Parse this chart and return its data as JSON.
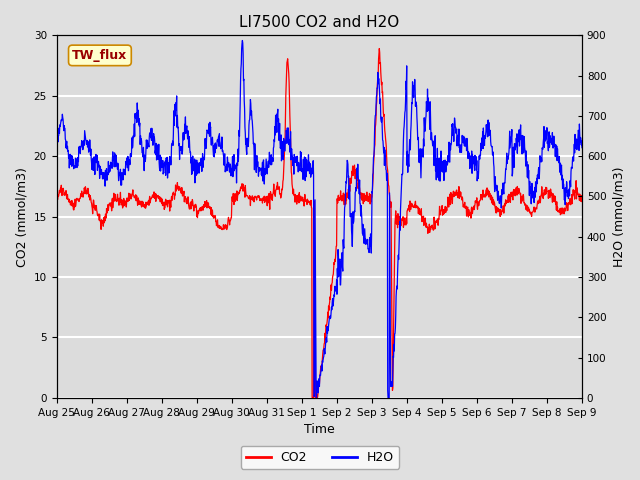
{
  "title": "LI7500 CO2 and H2O",
  "xlabel": "Time",
  "ylabel_left": "CO2 (mmol/m3)",
  "ylabel_right": "H2O (mmol/m3)",
  "ylim_left": [
    0,
    30
  ],
  "ylim_right": [
    0,
    900
  ],
  "yticks_left": [
    0,
    5,
    10,
    15,
    20,
    25,
    30
  ],
  "yticks_right": [
    0,
    100,
    200,
    300,
    400,
    500,
    600,
    700,
    800,
    900
  ],
  "xtick_labels": [
    "Aug 25",
    "Aug 26",
    "Aug 27",
    "Aug 28",
    "Aug 29",
    "Aug 30",
    "Aug 31",
    "Sep 1",
    "Sep 2",
    "Sep 3",
    "Sep 4",
    "Sep 5",
    "Sep 6",
    "Sep 7",
    "Sep 8",
    "Sep 9"
  ],
  "co2_color": "#FF0000",
  "h2o_color": "#0000FF",
  "fig_bg_color": "#E0E0E0",
  "plot_bg_color": "#DCDCDC",
  "annotation_text": "TW_flux",
  "annotation_fg": "#990000",
  "annotation_bg": "#FFFFCC",
  "annotation_border": "#CC8800",
  "legend_entries": [
    "CO2",
    "H2O"
  ],
  "title_fontsize": 11,
  "axis_label_fontsize": 9,
  "tick_fontsize": 7.5,
  "line_width": 0.9
}
